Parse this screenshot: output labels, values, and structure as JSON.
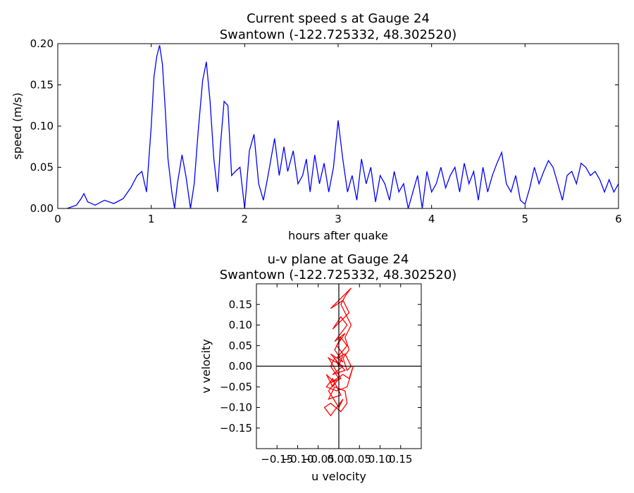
{
  "chart_data": [
    {
      "type": "line",
      "title": "Current speed s at Gauge 24",
      "subtitle": "Swantown  (-122.725332, 48.302520)",
      "xlabel": "hours after quake",
      "ylabel": "speed (m/s)",
      "xlim": [
        0,
        6
      ],
      "ylim": [
        0,
        0.2
      ],
      "xticks": [
        "0",
        "1",
        "2",
        "3",
        "4",
        "5",
        "6"
      ],
      "yticks": [
        "0.00",
        "0.05",
        "0.10",
        "0.15",
        "0.20"
      ],
      "grid": false,
      "line_color": "#0000ff",
      "series": [
        {
          "x": [
            0.1,
            0.2,
            0.25,
            0.28,
            0.32,
            0.4,
            0.5,
            0.6,
            0.7,
            0.78,
            0.85,
            0.9,
            0.95,
            1.0,
            1.03,
            1.06,
            1.09,
            1.12,
            1.15,
            1.18,
            1.22,
            1.25,
            1.28,
            1.33,
            1.37,
            1.42,
            1.46,
            1.5,
            1.55,
            1.59,
            1.63,
            1.67,
            1.71,
            1.74,
            1.78,
            1.82,
            1.86,
            1.9,
            1.95,
            2.0,
            2.05,
            2.1,
            2.15,
            2.2,
            2.25,
            2.32,
            2.37,
            2.42,
            2.46,
            2.52,
            2.57,
            2.62,
            2.66,
            2.7,
            2.75,
            2.8,
            2.85,
            2.9,
            2.95,
            3.0,
            3.05,
            3.1,
            3.15,
            3.2,
            3.25,
            3.3,
            3.35,
            3.4,
            3.45,
            3.5,
            3.55,
            3.6,
            3.65,
            3.7,
            3.75,
            3.8,
            3.85,
            3.9,
            3.95,
            4.0,
            4.05,
            4.1,
            4.15,
            4.2,
            4.25,
            4.3,
            4.35,
            4.4,
            4.45,
            4.5,
            4.55,
            4.6,
            4.65,
            4.7,
            4.75,
            4.8,
            4.85,
            4.9,
            4.95,
            5.0,
            5.05,
            5.1,
            5.15,
            5.2,
            5.25,
            5.3,
            5.35,
            5.4,
            5.45,
            5.5,
            5.55,
            5.6,
            5.65,
            5.7,
            5.75,
            5.8,
            5.85,
            5.9,
            5.95,
            6.0
          ],
          "y": [
            0.0,
            0.004,
            0.012,
            0.018,
            0.008,
            0.004,
            0.01,
            0.006,
            0.012,
            0.025,
            0.04,
            0.045,
            0.02,
            0.1,
            0.16,
            0.185,
            0.198,
            0.175,
            0.12,
            0.06,
            0.02,
            0.0,
            0.03,
            0.065,
            0.04,
            0.0,
            0.03,
            0.09,
            0.155,
            0.178,
            0.13,
            0.06,
            0.02,
            0.075,
            0.13,
            0.125,
            0.04,
            0.045,
            0.05,
            0.0,
            0.07,
            0.09,
            0.03,
            0.01,
            0.04,
            0.085,
            0.04,
            0.075,
            0.045,
            0.07,
            0.03,
            0.04,
            0.06,
            0.02,
            0.065,
            0.03,
            0.055,
            0.02,
            0.05,
            0.107,
            0.06,
            0.02,
            0.04,
            0.01,
            0.06,
            0.03,
            0.05,
            0.008,
            0.04,
            0.03,
            0.01,
            0.045,
            0.02,
            0.03,
            0.0,
            0.02,
            0.04,
            0.0,
            0.045,
            0.02,
            0.03,
            0.05,
            0.025,
            0.04,
            0.05,
            0.02,
            0.055,
            0.03,
            0.045,
            0.01,
            0.05,
            0.02,
            0.04,
            0.055,
            0.068,
            0.03,
            0.02,
            0.04,
            0.01,
            0.005,
            0.025,
            0.05,
            0.03,
            0.045,
            0.058,
            0.05,
            0.03,
            0.01,
            0.04,
            0.045,
            0.03,
            0.055,
            0.05,
            0.04,
            0.045,
            0.035,
            0.02,
            0.035,
            0.02,
            0.03
          ]
        }
      ]
    },
    {
      "type": "line",
      "title": "u-v plane at Gauge 24",
      "subtitle": "Swantown  (-122.725332, 48.302520)",
      "xlabel": "u velocity",
      "ylabel": "v velocity",
      "xlim": [
        -0.2,
        0.2
      ],
      "ylim": [
        -0.2,
        0.2
      ],
      "xticks": [
        "−0.15",
        "−0.10",
        "−0.05",
        "0.00",
        "0.05",
        "0.10",
        "0.15"
      ],
      "yticks": [
        "−0.15",
        "−0.10",
        "−0.05",
        "0.00",
        "0.05",
        "0.10",
        "0.15"
      ],
      "grid": false,
      "line_color": "#ff0000",
      "series": [
        {
          "u": [
            0.0,
            0.01,
            -0.005,
            0.015,
            -0.01,
            0.02,
            0.005,
            -0.015,
            0.025,
            0.01,
            -0.02,
            0.03,
            0.015,
            0.005,
            0.02,
            0.03,
            0.015,
            0.025,
            0.01,
            0.02,
            0.03,
            0.015,
            -0.005,
            0.02,
            0.005,
            -0.01,
            0.01,
            -0.02,
            0.015,
            -0.015,
            0.01,
            -0.025,
            0.005,
            -0.02,
            0.01,
            0.025,
            0.035,
            0.02,
            -0.005,
            -0.03,
            -0.015,
            0.005,
            -0.025,
            -0.01,
            0.015,
            0.02,
            0.005,
            -0.02,
            -0.035,
            -0.02,
            0.01,
            0.0,
            -0.025,
            -0.01,
            -0.03,
            -0.015,
            0.0,
            -0.02,
            -0.01,
            0.0
          ],
          "v": [
            0.0,
            0.03,
            0.05,
            0.08,
            0.06,
            0.1,
            0.12,
            0.09,
            0.13,
            0.16,
            0.14,
            0.19,
            0.17,
            0.15,
            0.12,
            0.1,
            0.07,
            0.04,
            0.02,
            -0.01,
            0.0,
            0.03,
            0.02,
            0.05,
            0.07,
            0.04,
            0.01,
            0.03,
            -0.01,
            -0.02,
            0.0,
            0.02,
            -0.03,
            -0.04,
            -0.02,
            -0.03,
            0.0,
            -0.05,
            -0.06,
            -0.05,
            -0.03,
            -0.07,
            -0.08,
            -0.05,
            -0.06,
            -0.09,
            -0.11,
            -0.09,
            -0.1,
            -0.12,
            -0.08,
            -0.1,
            -0.06,
            -0.04,
            -0.02,
            -0.05,
            -0.03,
            0.0,
            0.02,
            0.0
          ]
        }
      ]
    }
  ]
}
